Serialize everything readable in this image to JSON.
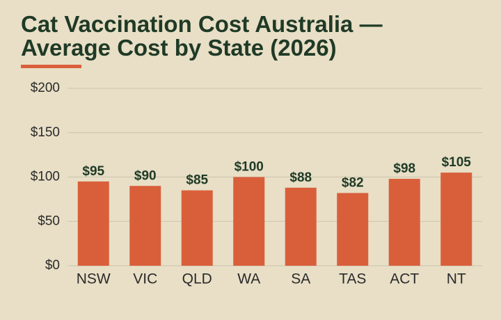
{
  "chart_data": {
    "type": "bar",
    "title": "Cat Vaccination Cost Australia — Average Cost by State (2026)",
    "categories": [
      "NSW",
      "VIC",
      "QLD",
      "WA",
      "SA",
      "TAS",
      "ACT",
      "NT"
    ],
    "values": [
      95,
      90,
      85,
      100,
      88,
      82,
      98,
      105
    ],
    "value_labels": [
      "$95",
      "$90",
      "$85",
      "$100",
      "$88",
      "$82",
      "$98",
      "$105"
    ],
    "color": "#d95f3b",
    "ylim": [
      0,
      200
    ],
    "yticks": [
      {
        "value": 0,
        "label": "$0"
      },
      {
        "value": 50,
        "label": "$50"
      },
      {
        "value": 100,
        "label": "$100"
      },
      {
        "value": 150,
        "label": "$150"
      },
      {
        "value": 200,
        "label": "$200"
      }
    ],
    "grid": true
  }
}
